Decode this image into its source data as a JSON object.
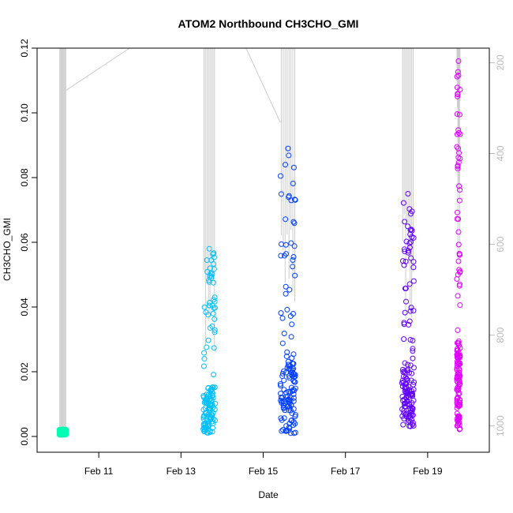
{
  "chart_data": {
    "type": "scatter",
    "title": "ATOM2 Northbound CH3CHO_GMI",
    "xlabel": "Date",
    "ylabel": "CH3CHO_GMI",
    "xlim": [
      "Feb 09 12:00",
      "Feb 20 12:00"
    ],
    "ylim": [
      0,
      0.12
    ],
    "y2lim_reversed": [
      175,
      1030
    ],
    "x_ticks": [
      "Feb 11",
      "Feb 13",
      "Feb 15",
      "Feb 17",
      "Feb 19"
    ],
    "y_ticks": [
      "0.00",
      "0.02",
      "0.04",
      "0.06",
      "0.08",
      "0.10",
      "0.12"
    ],
    "y2_ticks": [
      "200",
      "400",
      "600",
      "800",
      "1000"
    ],
    "grid": false,
    "secondary_axis_meaning": "pressure profile (gray lines, reversed right axis)",
    "series": [
      {
        "color": "#00ffb3",
        "x_range": [
          "Feb 10 01:00",
          "Feb 10 05:00"
        ],
        "y_min": 0.0005,
        "y_max": 0.0022,
        "profile_pressure_min": 175
      },
      {
        "color": "#00c0ff",
        "x_range": [
          "Feb 13 13:00",
          "Feb 13 20:00"
        ],
        "y_min": 0.001,
        "y_max": 0.058,
        "profile_pressure_min": 175
      },
      {
        "color": "#0040ff",
        "x_range": [
          "Feb 15 10:00",
          "Feb 15 19:00"
        ],
        "y_min": 0.001,
        "y_max": 0.089,
        "profile_pressure_min": 175
      },
      {
        "color": "#6000ff",
        "x_range": [
          "Feb 18 09:00",
          "Feb 18 16:00"
        ],
        "y_min": 0.003,
        "y_max": 0.075,
        "profile_pressure_min": 175
      },
      {
        "color": "#e000ff",
        "x_range": [
          "Feb 19 17:00",
          "Feb 19 19:00"
        ],
        "y_min": 0.001,
        "y_max": 0.116,
        "profile_pressure_min": 175
      }
    ]
  }
}
